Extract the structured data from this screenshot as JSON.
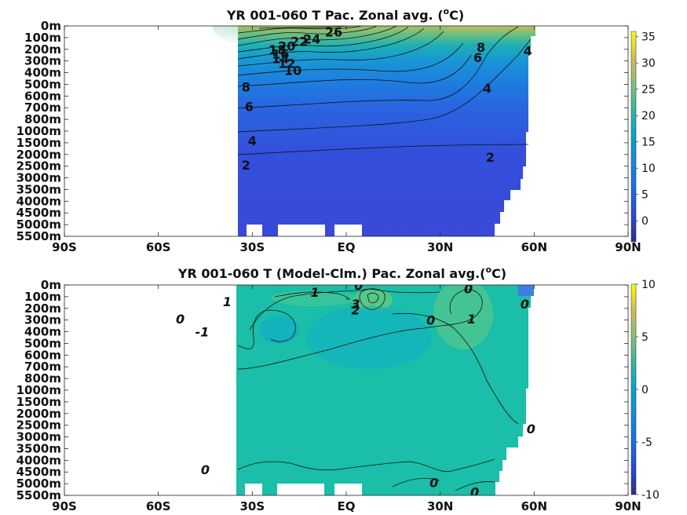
{
  "chart_data": [
    {
      "type": "heatmap",
      "title_main": "YR 001-060 T Pac. Zonal avg. (",
      "title_sup": "o",
      "title_end": "C)",
      "x_ticks": [
        "90S",
        "60S",
        "30S",
        "EQ",
        "30N",
        "60N",
        "90N"
      ],
      "x_tick_values": [
        -90,
        -60,
        -30,
        0,
        30,
        60,
        90
      ],
      "y_ticks": [
        "0m",
        "100m",
        "200m",
        "300m",
        "400m",
        "500m",
        "600m",
        "700m",
        "800m",
        "1000m",
        "1500m",
        "2000m",
        "2500m",
        "3000m",
        "3500m",
        "4000m",
        "4500m",
        "5000m",
        "5500m"
      ],
      "colorbar_ticks": [
        "35",
        "30",
        "25",
        "20",
        "15",
        "10",
        "5",
        "0"
      ],
      "colorbar_tick_values": [
        35,
        30,
        25,
        20,
        15,
        10,
        5,
        0
      ],
      "colorbar_range": [
        -4,
        36
      ],
      "contour_labels": [
        {
          "text": "26",
          "lat": -4,
          "depth_index": 0.5
        },
        {
          "text": "24",
          "lat": -11,
          "depth_index": 1.1
        },
        {
          "text": "22",
          "lat": -15,
          "depth_index": 1.3
        },
        {
          "text": "20",
          "lat": -19,
          "depth_index": 1.7
        },
        {
          "text": "18",
          "lat": -22,
          "depth_index": 2.0
        },
        {
          "text": "16",
          "lat": -21,
          "depth_index": 2.4
        },
        {
          "text": "14",
          "lat": -21,
          "depth_index": 2.8
        },
        {
          "text": "12",
          "lat": -19,
          "depth_index": 3.2
        },
        {
          "text": "10",
          "lat": -17,
          "depth_index": 3.8
        },
        {
          "text": "8",
          "lat": -32,
          "depth_index": 5.2
        },
        {
          "text": "6",
          "lat": -31,
          "depth_index": 6.9
        },
        {
          "text": "4",
          "lat": -30,
          "depth_index": 9.8
        },
        {
          "text": "2",
          "lat": -32,
          "depth_index": 11.9
        },
        {
          "text": "6",
          "lat": 42,
          "depth_index": 2.7
        },
        {
          "text": "8",
          "lat": 43,
          "depth_index": 1.8
        },
        {
          "text": "4",
          "lat": 58,
          "depth_index": 2.1
        },
        {
          "text": "4",
          "lat": 45,
          "depth_index": 5.3
        },
        {
          "text": "2",
          "lat": 46,
          "depth_index": 11.2
        }
      ]
    },
    {
      "type": "heatmap",
      "title_main": "YR 001-060 T (Model-Clm.) Pac. Zonal avg.(",
      "title_sup": "o",
      "title_end": "C)",
      "x_ticks": [
        "90S",
        "60S",
        "30S",
        "EQ",
        "30N",
        "60N",
        "90N"
      ],
      "x_tick_values": [
        -90,
        -60,
        -30,
        0,
        30,
        60,
        90
      ],
      "y_ticks": [
        "0m",
        "100m",
        "200m",
        "300m",
        "400m",
        "500m",
        "600m",
        "700m",
        "800m",
        "1000m",
        "1500m",
        "2000m",
        "2500m",
        "3000m",
        "3500m",
        "4000m",
        "4500m",
        "5000m",
        "5500m"
      ],
      "colorbar_ticks": [
        "10",
        "5",
        "0",
        "-5",
        "-10"
      ],
      "colorbar_tick_values": [
        10,
        5,
        0,
        -5,
        -10
      ],
      "colorbar_range": [
        -10,
        10
      ],
      "contour_labels": [
        {
          "text": "0",
          "lat": 4,
          "depth_index": 0.0
        },
        {
          "text": "1",
          "lat": -10,
          "depth_index": 0.6
        },
        {
          "text": "1",
          "lat": -38,
          "depth_index": 1.4
        },
        {
          "text": "3",
          "lat": 3,
          "depth_index": 1.6
        },
        {
          "text": "2",
          "lat": 3,
          "depth_index": 2.1
        },
        {
          "text": "0",
          "lat": 39,
          "depth_index": 0.3
        },
        {
          "text": "0",
          "lat": 57,
          "depth_index": 1.6
        },
        {
          "text": "1",
          "lat": 40,
          "depth_index": 2.9
        },
        {
          "text": "0",
          "lat": 27,
          "depth_index": 3.0
        },
        {
          "text": "0",
          "lat": -53,
          "depth_index": 2.9
        },
        {
          "text": "-1",
          "lat": -46,
          "depth_index": 4.0
        },
        {
          "text": "0",
          "lat": 59,
          "depth_index": 12.3
        },
        {
          "text": "0",
          "lat": -45,
          "depth_index": 15.8
        },
        {
          "text": "0",
          "lat": 28,
          "depth_index": 16.9
        },
        {
          "text": "0",
          "lat": 41,
          "depth_index": 17.7
        }
      ]
    }
  ]
}
